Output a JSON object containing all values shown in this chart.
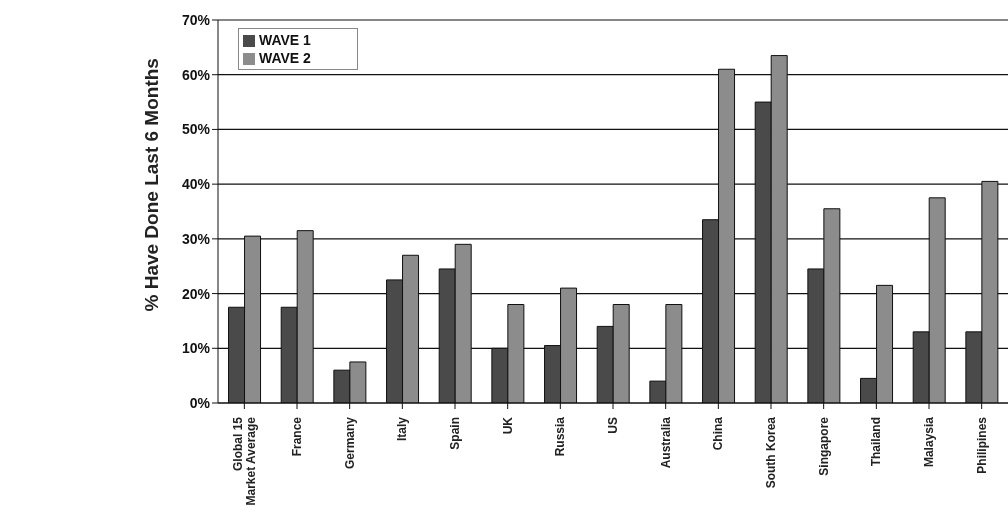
{
  "chart_data": {
    "type": "bar",
    "ylabel": "% Have Done Last 6 Months",
    "categories": [
      "Global 15 Market Average",
      "France",
      "Germany",
      "Italy",
      "Spain",
      "UK",
      "Russia",
      "US",
      "Australia",
      "China",
      "South Korea",
      "Singapore",
      "Thailand",
      "Malaysia",
      "Philipines"
    ],
    "series": [
      {
        "name": "WAVE 1",
        "color": "#4a4a4a",
        "values": [
          17.5,
          17.5,
          6,
          22.5,
          24.5,
          10,
          10.5,
          14,
          4,
          33.5,
          55,
          24.5,
          4.5,
          13,
          13
        ]
      },
      {
        "name": "WAVE 2",
        "color": "#8c8c8c",
        "values": [
          30.5,
          31.5,
          7.5,
          27,
          29,
          18,
          21,
          18,
          18,
          61,
          63.5,
          35.5,
          21.5,
          37.5,
          40.5
        ]
      }
    ],
    "ylim": [
      0,
      70
    ],
    "yticks": [
      {
        "value": 0,
        "label": "0%"
      },
      {
        "value": 10,
        "label": "10%"
      },
      {
        "value": 20,
        "label": "20%"
      },
      {
        "value": 30,
        "label": "30%"
      },
      {
        "value": 40,
        "label": "40%"
      },
      {
        "value": 50,
        "label": "50%"
      },
      {
        "value": 60,
        "label": "60%"
      },
      {
        "value": 70,
        "label": "70%"
      }
    ],
    "grid": "y",
    "legend": "top left"
  }
}
